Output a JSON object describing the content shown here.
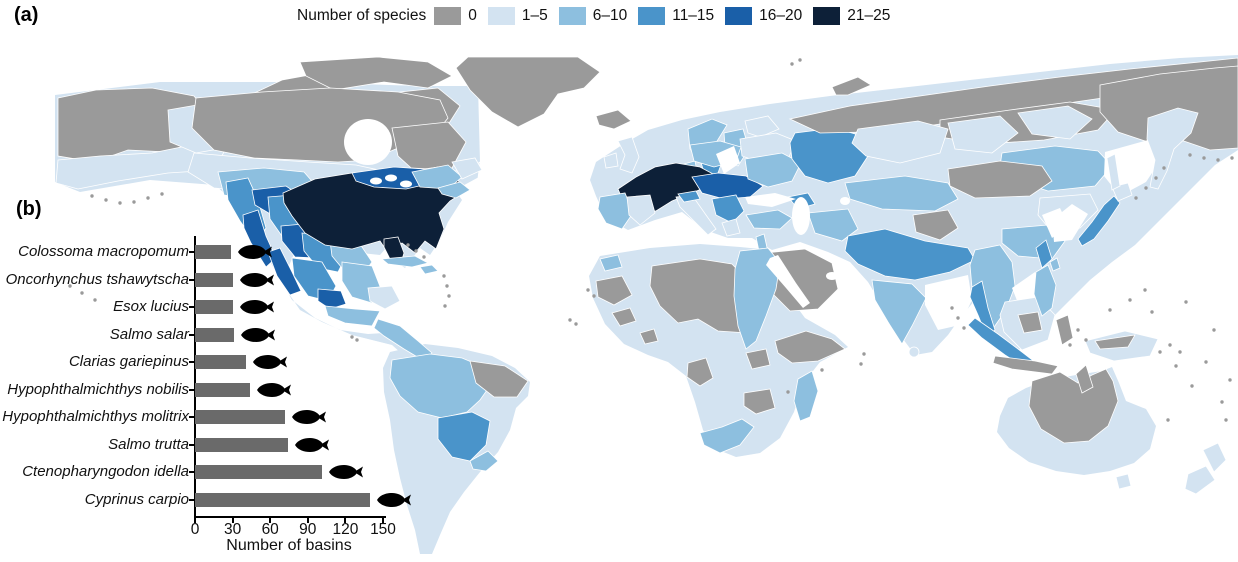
{
  "panels": {
    "a": "(a)",
    "b": "(b)"
  },
  "legend": {
    "title": "Number of species",
    "items": [
      {
        "label": "0",
        "color": "#9a9a9a"
      },
      {
        "label": "1–5",
        "color": "#d3e3f1"
      },
      {
        "label": "6–10",
        "color": "#8dbfdf"
      },
      {
        "label": "11–15",
        "color": "#4a94ca"
      },
      {
        "label": "16–20",
        "color": "#1a5fa8"
      },
      {
        "label": "21–25",
        "color": "#0d2038"
      }
    ]
  },
  "chart_data": [
    {
      "type": "heatmap",
      "subtype": "choropleth-world-map-of-river-basins",
      "panel": "(a)",
      "legend_title": "Number of species",
      "classes": [
        "0",
        "1–5",
        "6–10",
        "11–15",
        "16–20",
        "21–25"
      ],
      "class_colors": [
        "#9a9a9a",
        "#d3e3f1",
        "#8dbfdf",
        "#4a94ca",
        "#1a5fa8",
        "#0d2038"
      ],
      "regions": {
        "na-base": 1,
        "sa-base": 1,
        "eurasia-base": 1,
        "africa-base": 1,
        "australia-base": 1,
        "greenland": 0,
        "arctic-islands-west": 0,
        "arctic-islands-north": 0,
        "baffin": 0,
        "alaska": 0,
        "alaska-coast": 1,
        "yukon": 1,
        "canada-gray": 0,
        "quebec-gray": 0,
        "canada-lightband": 1,
        "prairies": 2,
        "bc-coast": 3,
        "columbia": 4,
        "california": 4,
        "great-basin": 3,
        "colorado": 4,
        "rio-grande": 3,
        "texas-gulf": 2,
        "baja": 4,
        "nw-mexico": 3,
        "mexico-central": 4,
        "mexico-gulf": 2,
        "yucatan": 1,
        "mexico-south": 2,
        "central-america": 2,
        "mississippi": 5,
        "florida": 5,
        "great-lakes": 4,
        "st-lawrence": 2,
        "nova-scotia": 2,
        "newfoundland": 1,
        "cuba": 2,
        "hispaniola": 2,
        "amazon": 2,
        "ne-brazil": 0,
        "parana": 3,
        "uruguay": 2,
        "iceland": 0,
        "ireland": 1,
        "uk": 1,
        "norway": 2,
        "sweden": 3,
        "finland": 2,
        "kola": 1,
        "denmark": 2,
        "rhine": 5,
        "danube": 4,
        "poland": 2,
        "east-europe": 1,
        "dnieper": 2,
        "iberia-west": 2,
        "iberia-east": 1,
        "italy": 1,
        "po": 3,
        "balkans": 3,
        "greece": 1,
        "turkey": 2,
        "caucasus": 3,
        "volga": 3,
        "north-russia": 0,
        "central-siberia": 0,
        "ne-siberia": 0,
        "novaya-zemlya": 0,
        "ob": 1,
        "yenisei": 1,
        "lena": 1,
        "kazakh": 2,
        "amur": 2,
        "mongolia": 0,
        "tarim": 0,
        "caspian-east": 2,
        "arabia": 0,
        "levant": 2,
        "sahara": 0,
        "west-africa-1": 0,
        "west-africa-2": 0,
        "guinea-coast": 0,
        "nile": 2,
        "horn": 0,
        "gabon": 0,
        "lakes-region": 0,
        "tanzania": 0,
        "madagascar": 2,
        "south-africa-coast": 2,
        "atlas": 2,
        "indus-ganges": 3,
        "india-peninsula": 2,
        "sri-lanka": 1,
        "mekong": 2,
        "malay": 3,
        "sumatra": 3,
        "borneo": 1,
        "borneo-spine": 0,
        "java": 0,
        "sulawesi": 0,
        "philippines": 2,
        "korea": 3,
        "japan": 3,
        "hokkaido": 1,
        "taiwan": 2,
        "yangtze": 2,
        "ne-china": 1,
        "sakhalin": 1,
        "kamchatka": 1,
        "newguinea": 1,
        "ng-spine": 0,
        "australia-gray": 0,
        "cape-york": 0,
        "tasmania": 1,
        "nz-north": 1,
        "nz-south": 1
      }
    },
    {
      "type": "bar",
      "panel": "(b)",
      "orientation": "horizontal",
      "categories": [
        "Colossoma macropomum",
        "Oncorhynchus tshawytscha",
        "Esox lucius",
        "Salmo salar",
        "Clarias gariepinus",
        "Hypophthalmichthys nobilis",
        "Hypophthalmichthys molitrix",
        "Salmo trutta",
        "Ctenopharyngodon idella",
        "Cyprinus carpio"
      ],
      "values": [
        29,
        30,
        30,
        31,
        41,
        44,
        72,
        74,
        101,
        140
      ],
      "xlabel": "Number of basins",
      "xticks": [
        0,
        30,
        60,
        90,
        120,
        150
      ],
      "xlim": [
        0,
        150
      ],
      "bar_color": "#6a6a6a",
      "fish_icon_color": "#000000"
    }
  ]
}
